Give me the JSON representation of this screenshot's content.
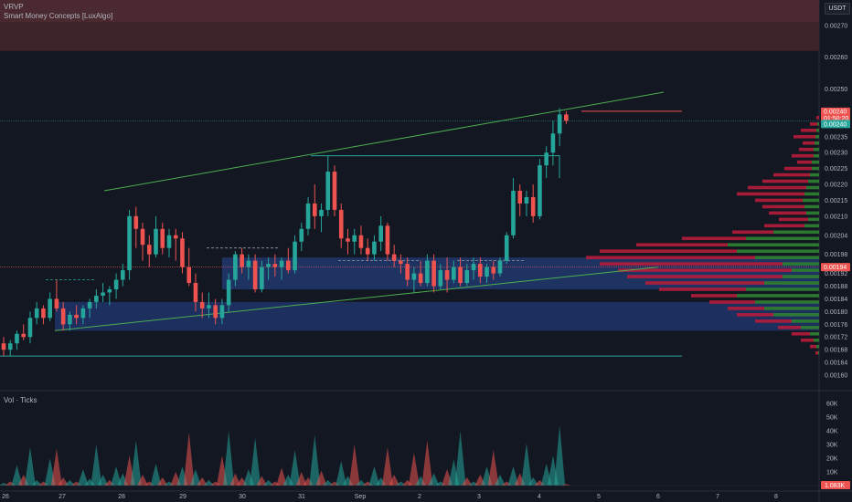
{
  "indicators": {
    "vrvp_label": "VRVP",
    "smc_label": "Smart Money Concepts [LuxAlgo]",
    "volume_label": "Vol · Ticks"
  },
  "currency": "USDT",
  "price_axis": {
    "min": 0.00158,
    "max": 0.00278,
    "ticks": [
      "0.00270",
      "0.00260",
      "0.00250",
      "0.00240",
      "0.00235",
      "0.00230",
      "0.00225",
      "0.00220",
      "0.00215",
      "0.00210",
      "0.00204",
      "0.00198",
      "0.00192",
      "0.00188",
      "0.00184",
      "0.00180",
      "0.00176",
      "0.00172",
      "0.00168",
      "0.00164",
      "0.00160"
    ],
    "tick_values": [
      0.0027,
      0.0026,
      0.0025,
      0.0024,
      0.00235,
      0.0023,
      0.00225,
      0.0022,
      0.00215,
      0.0021,
      0.00204,
      0.00198,
      0.00192,
      0.00188,
      0.00184,
      0.0018,
      0.00176,
      0.00172,
      0.00168,
      0.00164,
      0.0016
    ]
  },
  "price_labels": {
    "current_price": "0.00240",
    "countdown": "01:50:20",
    "line_price": "0.00240",
    "poc_price": "0.00194"
  },
  "volume_axis": {
    "ticks": [
      "60K",
      "50K",
      "40K",
      "30K",
      "20K",
      "10K"
    ],
    "tick_values": [
      60000,
      50000,
      40000,
      30000,
      20000,
      10000
    ],
    "max": 64000,
    "current_volume": "1.083K"
  },
  "time_axis": {
    "labels": [
      "26",
      "27",
      "28",
      "29",
      "30",
      "31",
      "Sep",
      "2",
      "3",
      "4",
      "5",
      "6",
      "7",
      "8"
    ]
  },
  "colors": {
    "background": "#131722",
    "up": "#26a69a",
    "down": "#ef5350",
    "ob_zone": "#1e3a78",
    "supply_zone": "#5c2b30",
    "channel": "#4caf50",
    "vrvp_up": "#2e7d32",
    "vrvp_down": "#b71c3a"
  },
  "chart_data": {
    "type": "candlestick",
    "ohlc": [
      [
        0.0017,
        0.00172,
        0.00166,
        0.00168
      ],
      [
        0.00168,
        0.00171,
        0.00166,
        0.0017
      ],
      [
        0.0017,
        0.00174,
        0.00168,
        0.00173
      ],
      [
        0.00173,
        0.00176,
        0.00171,
        0.00172
      ],
      [
        0.00172,
        0.0018,
        0.0017,
        0.00178
      ],
      [
        0.00178,
        0.00183,
        0.00176,
        0.00181
      ],
      [
        0.00181,
        0.00182,
        0.00176,
        0.00178
      ],
      [
        0.00178,
        0.00186,
        0.00177,
        0.00184
      ],
      [
        0.00184,
        0.0019,
        0.0018,
        0.00181
      ],
      [
        0.00181,
        0.00183,
        0.00174,
        0.00176
      ],
      [
        0.00176,
        0.0018,
        0.00174,
        0.00179
      ],
      [
        0.00179,
        0.00182,
        0.00176,
        0.00178
      ],
      [
        0.00178,
        0.00182,
        0.00176,
        0.00181
      ],
      [
        0.00181,
        0.00184,
        0.00178,
        0.00183
      ],
      [
        0.00183,
        0.00187,
        0.00181,
        0.00185
      ],
      [
        0.00185,
        0.00189,
        0.00183,
        0.00186
      ],
      [
        0.00186,
        0.00188,
        0.00182,
        0.00187
      ],
      [
        0.00187,
        0.00192,
        0.00184,
        0.0019
      ],
      [
        0.0019,
        0.00195,
        0.00188,
        0.00193
      ],
      [
        0.00193,
        0.00212,
        0.0019,
        0.0021
      ],
      [
        0.0021,
        0.00213,
        0.002,
        0.00206
      ],
      [
        0.00206,
        0.00208,
        0.00196,
        0.00201
      ],
      [
        0.00201,
        0.00204,
        0.00194,
        0.00198
      ],
      [
        0.00198,
        0.0021,
        0.00197,
        0.00206
      ],
      [
        0.00206,
        0.00208,
        0.00198,
        0.002
      ],
      [
        0.002,
        0.00206,
        0.00197,
        0.00204
      ],
      [
        0.00204,
        0.00206,
        0.00196,
        0.00203
      ],
      [
        0.00203,
        0.00205,
        0.00192,
        0.00194
      ],
      [
        0.00194,
        0.002,
        0.00188,
        0.00189
      ],
      [
        0.00189,
        0.00192,
        0.0018,
        0.00183
      ],
      [
        0.00183,
        0.00186,
        0.00178,
        0.00181
      ],
      [
        0.00181,
        0.00186,
        0.00178,
        0.00182
      ],
      [
        0.00182,
        0.00184,
        0.00176,
        0.00178
      ],
      [
        0.00178,
        0.00184,
        0.00176,
        0.00182
      ],
      [
        0.00182,
        0.00192,
        0.0018,
        0.0019
      ],
      [
        0.0019,
        0.00199,
        0.00188,
        0.00198
      ],
      [
        0.00198,
        0.002,
        0.00192,
        0.00194
      ],
      [
        0.00194,
        0.00198,
        0.0019,
        0.00196
      ],
      [
        0.00196,
        0.00198,
        0.00186,
        0.00187
      ],
      [
        0.00187,
        0.00196,
        0.00186,
        0.00194
      ],
      [
        0.00194,
        0.00197,
        0.0019,
        0.00195
      ],
      [
        0.00195,
        0.00198,
        0.00191,
        0.00194
      ],
      [
        0.00194,
        0.00197,
        0.0019,
        0.00196
      ],
      [
        0.00196,
        0.002,
        0.00192,
        0.00193
      ],
      [
        0.00193,
        0.00204,
        0.00192,
        0.00202
      ],
      [
        0.00202,
        0.00208,
        0.00199,
        0.00206
      ],
      [
        0.00206,
        0.00216,
        0.00204,
        0.00214
      ],
      [
        0.00214,
        0.0022,
        0.00206,
        0.0021
      ],
      [
        0.0021,
        0.00214,
        0.00205,
        0.00212
      ],
      [
        0.00212,
        0.00229,
        0.0021,
        0.00224
      ],
      [
        0.00224,
        0.00226,
        0.0021,
        0.00212
      ],
      [
        0.00212,
        0.00214,
        0.002,
        0.00203
      ],
      [
        0.00203,
        0.00206,
        0.00198,
        0.00202
      ],
      [
        0.00202,
        0.00206,
        0.00198,
        0.00204
      ],
      [
        0.00204,
        0.00207,
        0.00198,
        0.002
      ],
      [
        0.002,
        0.00203,
        0.00196,
        0.00198
      ],
      [
        0.00198,
        0.00204,
        0.00196,
        0.00202
      ],
      [
        0.00202,
        0.0021,
        0.00199,
        0.00207
      ],
      [
        0.00207,
        0.00208,
        0.00196,
        0.00198
      ],
      [
        0.00198,
        0.00201,
        0.00194,
        0.00196
      ],
      [
        0.00196,
        0.00198,
        0.00192,
        0.00195
      ],
      [
        0.00195,
        0.00197,
        0.00188,
        0.0019
      ],
      [
        0.0019,
        0.00194,
        0.00186,
        0.00192
      ],
      [
        0.00192,
        0.00196,
        0.00188,
        0.00189
      ],
      [
        0.00189,
        0.00198,
        0.00188,
        0.00196
      ],
      [
        0.00196,
        0.00198,
        0.00186,
        0.00188
      ],
      [
        0.00188,
        0.00195,
        0.00187,
        0.00193
      ],
      [
        0.00193,
        0.00197,
        0.00186,
        0.0019
      ],
      [
        0.0019,
        0.00196,
        0.00189,
        0.00194
      ],
      [
        0.00194,
        0.00197,
        0.00188,
        0.00189
      ],
      [
        0.00189,
        0.00195,
        0.00188,
        0.00193
      ],
      [
        0.00193,
        0.00197,
        0.0019,
        0.00195
      ],
      [
        0.00195,
        0.00197,
        0.00189,
        0.00191
      ],
      [
        0.00191,
        0.00195,
        0.00189,
        0.00194
      ],
      [
        0.00194,
        0.00196,
        0.0019,
        0.00192
      ],
      [
        0.00192,
        0.00197,
        0.00191,
        0.00196
      ],
      [
        0.00196,
        0.00205,
        0.00195,
        0.00204
      ],
      [
        0.00204,
        0.00222,
        0.00203,
        0.00218
      ],
      [
        0.00218,
        0.0022,
        0.0021,
        0.00214
      ],
      [
        0.00214,
        0.00218,
        0.0021,
        0.00216
      ],
      [
        0.00216,
        0.0022,
        0.00208,
        0.0021
      ],
      [
        0.0021,
        0.00228,
        0.00209,
        0.00226
      ],
      [
        0.00226,
        0.00232,
        0.00222,
        0.0023
      ],
      [
        0.0023,
        0.0024,
        0.00226,
        0.00236
      ],
      [
        0.00236,
        0.00244,
        0.00232,
        0.00242
      ],
      [
        0.00242,
        0.00243,
        0.00239,
        0.0024
      ]
    ],
    "volume": [
      [
        2000,
        1
      ],
      [
        3000,
        0
      ],
      [
        15000,
        1
      ],
      [
        8000,
        0
      ],
      [
        28000,
        1
      ],
      [
        4000,
        1
      ],
      [
        3000,
        0
      ],
      [
        20000,
        1
      ],
      [
        27000,
        0
      ],
      [
        6000,
        0
      ],
      [
        4000,
        1
      ],
      [
        3000,
        0
      ],
      [
        12000,
        1
      ],
      [
        5000,
        1
      ],
      [
        30000,
        1
      ],
      [
        8000,
        1
      ],
      [
        4000,
        0
      ],
      [
        14000,
        1
      ],
      [
        9000,
        1
      ],
      [
        22000,
        0
      ],
      [
        33000,
        1
      ],
      [
        8000,
        0
      ],
      [
        3000,
        0
      ],
      [
        16000,
        1
      ],
      [
        6000,
        0
      ],
      [
        3000,
        1
      ],
      [
        10000,
        0
      ],
      [
        14000,
        1
      ],
      [
        39000,
        0
      ],
      [
        12000,
        1
      ],
      [
        6000,
        0
      ],
      [
        4000,
        1
      ],
      [
        3000,
        0
      ],
      [
        22000,
        0
      ],
      [
        40000,
        1
      ],
      [
        9000,
        0
      ],
      [
        6000,
        0
      ],
      [
        12000,
        1
      ],
      [
        35000,
        1
      ],
      [
        7000,
        0
      ],
      [
        4000,
        1
      ],
      [
        3000,
        0
      ],
      [
        13000,
        0
      ],
      [
        8000,
        1
      ],
      [
        26000,
        1
      ],
      [
        10000,
        0
      ],
      [
        6000,
        0
      ],
      [
        37000,
        1
      ],
      [
        11000,
        0
      ],
      [
        4000,
        1
      ],
      [
        3000,
        0
      ],
      [
        18000,
        1
      ],
      [
        7000,
        1
      ],
      [
        30000,
        0
      ],
      [
        4000,
        1
      ],
      [
        3000,
        0
      ],
      [
        14000,
        1
      ],
      [
        6000,
        1
      ],
      [
        28000,
        0
      ],
      [
        8000,
        0
      ],
      [
        3000,
        1
      ],
      [
        4000,
        0
      ],
      [
        24000,
        0
      ],
      [
        7000,
        1
      ],
      [
        33000,
        0
      ],
      [
        9000,
        1
      ],
      [
        3000,
        1
      ],
      [
        12000,
        0
      ],
      [
        19000,
        1
      ],
      [
        40000,
        1
      ],
      [
        6000,
        0
      ],
      [
        3000,
        1
      ],
      [
        8000,
        0
      ],
      [
        14000,
        1
      ],
      [
        26000,
        0
      ],
      [
        8000,
        1
      ],
      [
        3000,
        0
      ],
      [
        14000,
        1
      ],
      [
        9000,
        0
      ],
      [
        31000,
        1
      ],
      [
        6000,
        1
      ],
      [
        4000,
        0
      ],
      [
        16000,
        1
      ],
      [
        22000,
        1
      ],
      [
        44000,
        1
      ],
      [
        1083,
        0
      ]
    ],
    "volume_ylim": [
      0,
      64000
    ],
    "price_ylim": [
      0.00158,
      0.00278
    ],
    "x_labels": [
      "26",
      "27",
      "28",
      "29",
      "30",
      "31",
      "Sep",
      "2",
      "3",
      "4",
      "5",
      "6",
      "7",
      "8"
    ]
  }
}
